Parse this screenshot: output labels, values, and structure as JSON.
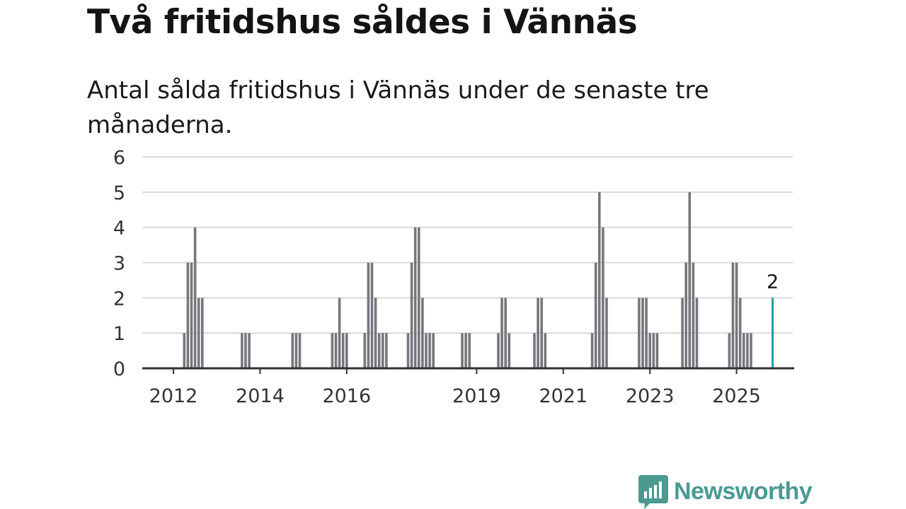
{
  "title": "Två fritidshus såldes i Vännäs",
  "subtitle": "Antal sålda fritidshus i Vännäs under de senaste tre månaderna.",
  "logo": {
    "text": "Newsworthy",
    "icon": "newsworthy-chart-bubble-icon"
  },
  "colors": {
    "bar": "#76767e",
    "highlight": "#1a9e9a",
    "grid": "#d9d9d9",
    "axis": "#333333",
    "logo": "#4a9a92"
  },
  "chart_data": {
    "type": "bar",
    "title": "Två fritidshus såldes i Vännäs",
    "subtitle": "Antal sålda fritidshus i Vännäs under de senaste tre månaderna.",
    "xlabel": "",
    "ylabel": "",
    "ylim": [
      0,
      6
    ],
    "yticks": [
      0,
      1,
      2,
      3,
      4,
      5,
      6
    ],
    "xticks": [
      "2012",
      "2014",
      "2016",
      "2019",
      "2021",
      "2023",
      "2025"
    ],
    "grid": true,
    "x": [
      "2012-04",
      "2012-05",
      "2012-06",
      "2012-07",
      "2012-08",
      "2012-09",
      "2013-08",
      "2013-09",
      "2013-10",
      "2014-10",
      "2014-11",
      "2014-12",
      "2015-09",
      "2015-10",
      "2015-11",
      "2015-12",
      "2016-01",
      "2016-06",
      "2016-07",
      "2016-08",
      "2016-09",
      "2016-10",
      "2016-11",
      "2016-12",
      "2017-06",
      "2017-07",
      "2017-08",
      "2017-09",
      "2017-10",
      "2017-11",
      "2017-12",
      "2018-01",
      "2018-09",
      "2018-10",
      "2018-11",
      "2019-07",
      "2019-08",
      "2019-09",
      "2019-10",
      "2020-05",
      "2020-06",
      "2020-07",
      "2020-08",
      "2021-09",
      "2021-10",
      "2021-11",
      "2021-12",
      "2022-01",
      "2022-10",
      "2022-11",
      "2022-12",
      "2023-01",
      "2023-02",
      "2023-03",
      "2023-10",
      "2023-11",
      "2023-12",
      "2024-01",
      "2024-02",
      "2024-11",
      "2024-12",
      "2025-01",
      "2025-02",
      "2025-03",
      "2025-04",
      "2025-05",
      "2025-11"
    ],
    "values": [
      1,
      3,
      3,
      4,
      2,
      2,
      1,
      1,
      1,
      1,
      1,
      1,
      1,
      1,
      2,
      1,
      1,
      1,
      3,
      3,
      2,
      1,
      1,
      1,
      1,
      3,
      4,
      4,
      2,
      1,
      1,
      1,
      1,
      1,
      1,
      1,
      2,
      2,
      1,
      1,
      2,
      2,
      1,
      1,
      3,
      5,
      4,
      2,
      2,
      2,
      2,
      1,
      1,
      1,
      2,
      3,
      5,
      3,
      2,
      1,
      3,
      3,
      2,
      1,
      1,
      1,
      2
    ],
    "highlight": {
      "x": "2025-11",
      "value": 2,
      "label": "2"
    }
  }
}
